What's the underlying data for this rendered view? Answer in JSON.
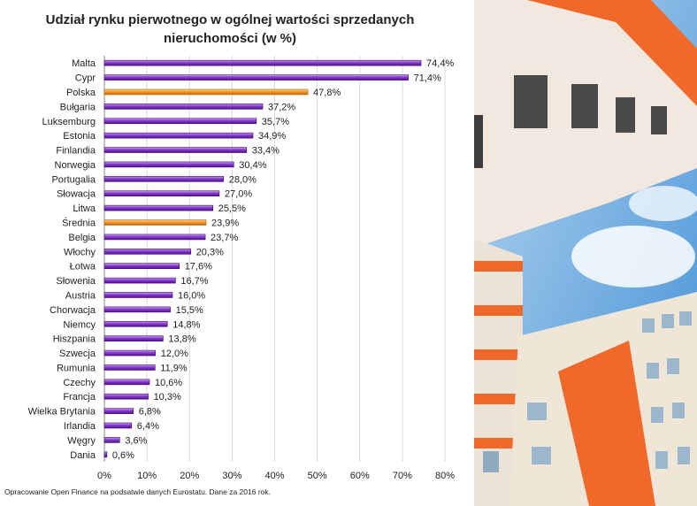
{
  "chart_data": {
    "type": "bar",
    "orientation": "horizontal",
    "title": "Udział rynku pierwotnego w ogólnej wartości sprzedanych nieruchomości (w %)",
    "title_lines": [
      "Udział rynku pierwotnego w ogólnej wartości sprzedanych",
      "nieruchomości (w %)"
    ],
    "xlabel": "",
    "ylabel": "",
    "xlim": [
      0,
      80
    ],
    "x_ticks": [
      "0%",
      "10%",
      "20%",
      "30%",
      "40%",
      "50%",
      "60%",
      "70%",
      "80%"
    ],
    "grid": true,
    "legend": "none",
    "categories": [
      "Malta",
      "Cypr",
      "Polska",
      "Bułgaria",
      "Luksemburg",
      "Estonia",
      "Finlandia",
      "Norwegia",
      "Portugalia",
      "Słowacja",
      "Litwa",
      "Średnia",
      "Belgia",
      "Włochy",
      "Łotwa",
      "Słowenia",
      "Austria",
      "Chorwacja",
      "Niemcy",
      "Hiszpania",
      "Szwecja",
      "Rumunia",
      "Czechy",
      "Francja",
      "Wielka Brytania",
      "Irlandia",
      "Węgry",
      "Dania"
    ],
    "values": [
      74.4,
      71.4,
      47.8,
      37.2,
      35.7,
      34.9,
      33.4,
      30.4,
      28.0,
      27.0,
      25.5,
      23.9,
      23.7,
      20.3,
      17.6,
      16.7,
      16.0,
      15.5,
      14.8,
      13.8,
      12.0,
      11.9,
      10.6,
      10.3,
      6.8,
      6.4,
      3.6,
      0.6
    ],
    "value_labels": [
      "74,4%",
      "71,4%",
      "47,8%",
      "37,2%",
      "35,7%",
      "34,9%",
      "33,4%",
      "30,4%",
      "28,0%",
      "27,0%",
      "25,5%",
      "23,9%",
      "23,7%",
      "20,3%",
      "17,6%",
      "16,7%",
      "16,0%",
      "15,5%",
      "14,8%",
      "13,8%",
      "12,0%",
      "11,9%",
      "10,6%",
      "10,3%",
      "6,8%",
      "6,4%",
      "3,6%",
      "0,6%"
    ],
    "highlighted": [
      "Polska",
      "Średnia"
    ],
    "colors": {
      "default": "#7b2fbe",
      "highlight": "#f39a2a"
    }
  },
  "source_note": "Opracowanie Open Finance na podsatwie danych Eurostatu. Dane za 2016 rok.",
  "photo": {
    "description_icon": "apartment-buildings-photo"
  }
}
